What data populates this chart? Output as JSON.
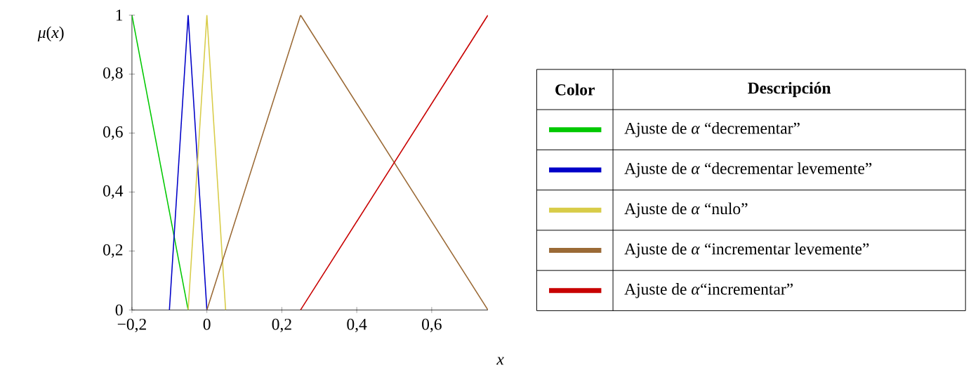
{
  "chart_data": {
    "type": "line",
    "xlabel": "x",
    "ylabel": "*μ*(*x*)",
    "legend_title": "Descripción",
    "annotations": [
      "Color"
    ],
    "legend": "right",
    "xlim": [
      -0.2,
      0.75
    ],
    "ylim": [
      0,
      1
    ],
    "xticks": [
      {
        "value": -0.2,
        "label": "−0,2"
      },
      0,
      {
        "value": 0.2,
        "label": "0,2"
      },
      {
        "value": 0.4,
        "label": "0,4"
      },
      {
        "value": 0.6,
        "label": "0,6"
      }
    ],
    "yticks": [
      0,
      {
        "value": 0.2,
        "label": "0,2"
      },
      {
        "value": 0.4,
        "label": "0,4"
      },
      {
        "value": 0.6,
        "label": "0,6"
      },
      {
        "value": 0.8,
        "label": "0,8"
      },
      1
    ],
    "series": [
      {
        "name": "Ajuste de *α* “decrementar”",
        "color": "#00c800",
        "x": [
          -0.2,
          -0.05
        ],
        "values": [
          1,
          0
        ]
      },
      {
        "name": "Ajuste de *α* “decrementar levemente”",
        "color": "#0000c8",
        "x": [
          -0.1,
          -0.05,
          0
        ],
        "values": [
          0,
          1,
          0
        ]
      },
      {
        "name": "Ajuste de *α* “nulo”",
        "color": "#d8cc48",
        "x": [
          -0.05,
          0,
          0.05
        ],
        "values": [
          0,
          1,
          0
        ]
      },
      {
        "name": "Ajuste de *α* “incrementar levemente”",
        "color": "#9b6a36",
        "x": [
          0,
          0.25,
          0.75
        ],
        "values": [
          0,
          1,
          0
        ]
      },
      {
        "name": "Ajuste de *α*“incrementar”",
        "color": "#c80000",
        "x": [
          0.25,
          0.75
        ],
        "values": [
          0,
          1
        ]
      }
    ]
  }
}
